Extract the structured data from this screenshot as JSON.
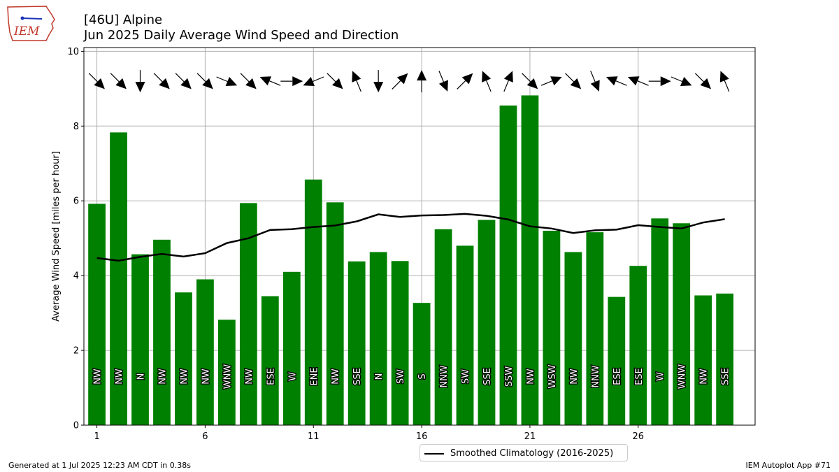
{
  "header": {
    "title_line1": "[46U] Alpine",
    "title_line2": "Jun 2025 Daily Average Wind Speed and Direction",
    "logo_text": "IEM"
  },
  "footer": {
    "generated": "Generated at 1 Jul 2025 12:23 AM CDT in 0.38s",
    "app": "IEM Autoplot App #71"
  },
  "legend": {
    "label": "Smoothed Climatology (2016-2025)"
  },
  "colors": {
    "bar": "#008000",
    "climatology": "#000000",
    "grid": "#b0b0b0"
  },
  "chart_data": {
    "type": "bar",
    "ylabel": "Average Wind Speed [miles per hour]",
    "xlabel": "",
    "ylim": [
      0,
      10.1
    ],
    "xlim": [
      0.4,
      31.4
    ],
    "yticks": [
      0,
      2,
      4,
      6,
      8,
      10
    ],
    "xticks": [
      1,
      6,
      11,
      16,
      21,
      26
    ],
    "grid": true,
    "legend_position": "bottom-center",
    "days": [
      1,
      2,
      3,
      4,
      5,
      6,
      7,
      8,
      9,
      10,
      11,
      12,
      13,
      14,
      15,
      16,
      17,
      18,
      19,
      20,
      21,
      22,
      23,
      24,
      25,
      26,
      27,
      28,
      29,
      30
    ],
    "values": [
      5.92,
      7.83,
      4.57,
      4.96,
      3.55,
      3.9,
      2.82,
      5.94,
      3.45,
      4.1,
      6.57,
      5.96,
      4.38,
      4.63,
      4.39,
      3.27,
      5.24,
      4.8,
      5.49,
      8.55,
      8.82,
      5.2,
      4.63,
      5.16,
      3.43,
      4.26,
      5.53,
      5.4,
      3.47,
      3.52
    ],
    "directions": [
      "NW",
      "NW",
      "N",
      "NW",
      "NW",
      "NW",
      "WNW",
      "NW",
      "ESE",
      "W",
      "ENE",
      "NW",
      "SSE",
      "N",
      "SW",
      "S",
      "NNW",
      "SW",
      "SSE",
      "SSW",
      "NW",
      "WSW",
      "NW",
      "NNW",
      "ESE",
      "ESE",
      "W",
      "WNW",
      "NW",
      "SSE"
    ],
    "series": [
      {
        "name": "Smoothed Climatology (2016-2025)",
        "values": [
          4.47,
          4.4,
          4.5,
          4.58,
          4.51,
          4.6,
          4.87,
          5.0,
          5.22,
          5.24,
          5.3,
          5.34,
          5.45,
          5.64,
          5.57,
          5.61,
          5.62,
          5.65,
          5.6,
          5.5,
          5.32,
          5.26,
          5.14,
          5.21,
          5.23,
          5.35,
          5.3,
          5.26,
          5.42,
          5.51
        ]
      }
    ]
  }
}
